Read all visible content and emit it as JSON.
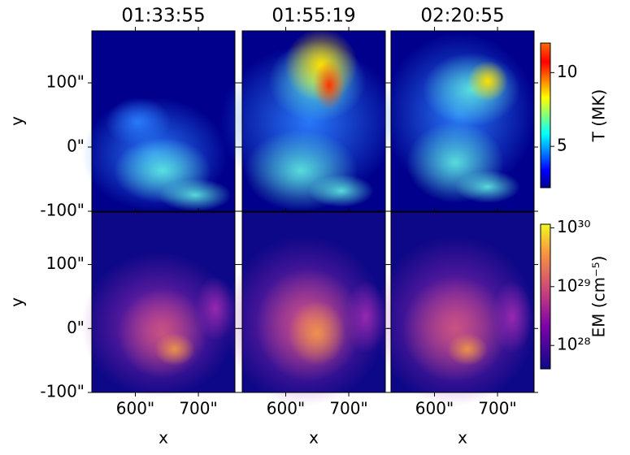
{
  "chart_data": {
    "type": "image-grid",
    "titles": [
      "01:33:55",
      "01:55:19",
      "02:20:55"
    ],
    "xlabel": "x",
    "ylabel": "y",
    "xlim": [
      531,
      758
    ],
    "xticks": [
      {
        "value": 600,
        "label": "600\""
      },
      {
        "value": 700,
        "label": "700\""
      }
    ],
    "rows": [
      {
        "ylim": [
          -100,
          181
        ],
        "yticks": [
          {
            "value": -100,
            "label": "-100\""
          },
          {
            "value": 0,
            "label": "0\""
          },
          {
            "value": 100,
            "label": "100\""
          }
        ],
        "colorbar": {
          "label": "T (MK)",
          "colormap": "jet",
          "log": false,
          "lim": [
            2.2,
            12
          ],
          "ticks": [
            5,
            10
          ]
        }
      },
      {
        "ylim": [
          -100,
          182
        ],
        "yticks": [
          {
            "value": -100,
            "label": "-100\""
          },
          {
            "value": 0,
            "label": "0\""
          },
          {
            "value": 100,
            "label": "100\""
          }
        ],
        "colorbar": {
          "label": "EM (cm⁻⁵)",
          "colormap": "plasma",
          "log": true,
          "lim": [
            4e+27,
            1.15e+30
          ],
          "ticks": [
            {
              "value": 1e+28,
              "label": "10²⁸"
            },
            {
              "value": 1e+29,
              "label": "10²⁹"
            },
            {
              "value": 1e+30,
              "label": "10³⁰"
            }
          ]
        }
      }
    ]
  }
}
